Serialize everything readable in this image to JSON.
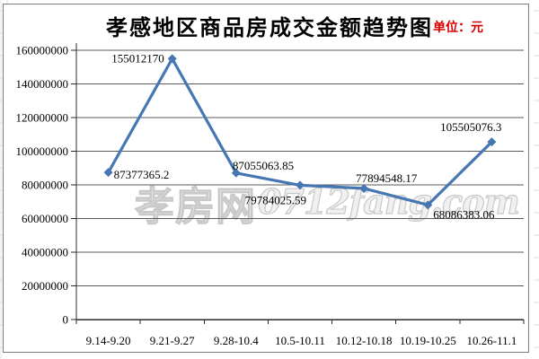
{
  "chart": {
    "title": "孝感地区商品房成交金额趋势图",
    "unit_label": "单位：元"
  },
  "watermark": {
    "cn": "孝房网",
    "latin": "0712fang.com"
  },
  "chart_data": {
    "type": "line",
    "title": "孝感地区商品房成交金额趋势图",
    "unit": "元",
    "categories": [
      "9.14-9.20",
      "9.21-9.27",
      "9.28-10.4",
      "10.5-10.11",
      "10.12-10.18",
      "10.19-10.25",
      "10.26-11.1"
    ],
    "series": [
      {
        "name": "成交金额",
        "values": [
          87377365.2,
          155012170,
          87055063.85,
          79784025.59,
          77894548.17,
          68086383.06,
          105505076.3
        ],
        "point_labels": [
          "87377365.2",
          "155012170",
          "87055063.85",
          "79784025.59",
          "77894548.17",
          "68086383.06",
          "105505076.3"
        ]
      }
    ],
    "xlabel": "",
    "ylabel": "",
    "ylim": [
      0,
      160000000
    ],
    "ytick_step": 20000000,
    "ytick_labels": [
      "0",
      "20000000",
      "40000000",
      "60000000",
      "80000000",
      "100000000",
      "120000000",
      "140000000",
      "160000000"
    ],
    "grid": "horizontal",
    "legend": "none",
    "line_color": "#4677b2",
    "marker": "diamond",
    "gridline_color": "#5a5a5a",
    "axis_color": "#2b2b2b"
  }
}
